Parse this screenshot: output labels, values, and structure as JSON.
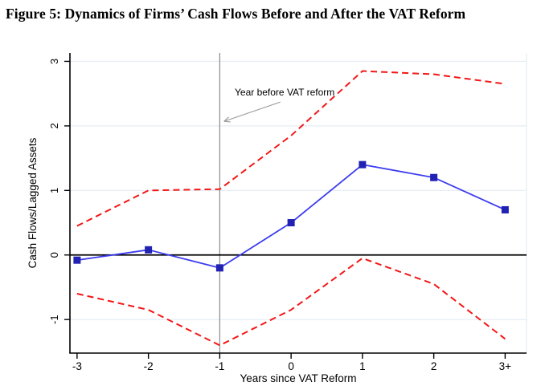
{
  "figure": {
    "title": "Figure 5:  Dynamics of Firms’ Cash Flows Before and After the VAT Reform"
  },
  "chart_data": {
    "type": "line",
    "title": "",
    "xlabel": "Years since VAT Reform",
    "ylabel": "Cash Flows/Lagged Assets",
    "x": [
      -3,
      -2,
      -1,
      0,
      1,
      2,
      3
    ],
    "x_tick_labels": [
      "-3",
      "-2",
      "-1",
      "0",
      "1",
      "2",
      "3+"
    ],
    "y_ticks": [
      -1,
      0,
      1,
      2,
      3
    ],
    "y_tick_labels": [
      "-1",
      "0",
      "1",
      "2",
      "3"
    ],
    "xlim": [
      -3.1,
      3.3
    ],
    "ylim": [
      -1.52,
      3.13
    ],
    "grid": "horizontal",
    "legend": "none",
    "series": [
      {
        "name": "point-estimate",
        "style": "solid",
        "marker": "square",
        "values": [
          -0.08,
          0.08,
          -0.2,
          0.5,
          1.4,
          1.2,
          0.7
        ]
      },
      {
        "name": "upper-95-ci",
        "style": "dashed",
        "marker": "none",
        "values": [
          0.45,
          1.0,
          1.02,
          1.85,
          2.85,
          2.8,
          2.65
        ]
      },
      {
        "name": "lower-95-ci",
        "style": "dashed",
        "marker": "none",
        "values": [
          -0.6,
          -0.85,
          -1.4,
          -0.85,
          -0.05,
          -0.45,
          -1.3
        ]
      }
    ],
    "reference_lines": [
      {
        "axis": "x",
        "value": -1,
        "color": "#8c8c8c",
        "style": "solid"
      },
      {
        "axis": "y",
        "value": 0,
        "color": "#000000",
        "style": "solid"
      }
    ],
    "annotation": {
      "text": "Year before VAT reform",
      "text_xy": [
        -0.79,
        2.47
      ],
      "arrow_from_xy": [
        -0.15,
        2.37
      ],
      "arrow_to_xy": [
        -0.94,
        2.07
      ]
    },
    "colors": {
      "blue_line": "#3c3cf0",
      "blue_marker": "#2121b4",
      "red_dashed": "#f21717",
      "grid": "#e4ecf3",
      "reference_gray": "#8c8c8c",
      "axis": "#000000",
      "annotation_arrow": "#999999"
    }
  }
}
